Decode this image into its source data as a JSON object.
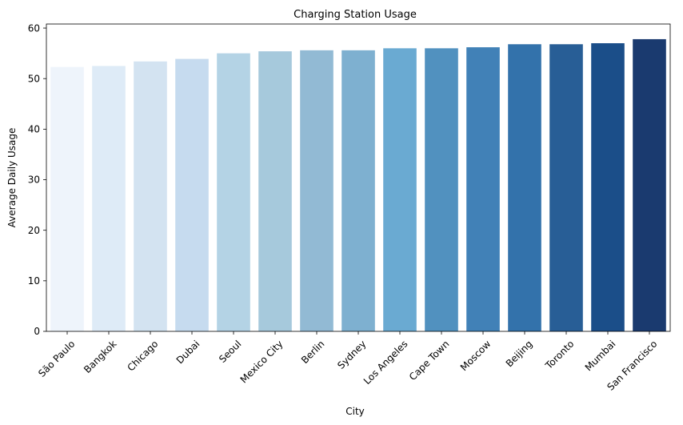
{
  "chart_data": {
    "type": "bar",
    "title": "Charging Station Usage",
    "xlabel": "City",
    "ylabel": "Average Daily Usage",
    "ylim": [
      0,
      60.8
    ],
    "yticks": [
      0,
      10,
      20,
      30,
      40,
      50,
      60
    ],
    "grid": false,
    "legend": "none",
    "categories": [
      "São Paulo",
      "Bangkok",
      "Chicago",
      "Dubai",
      "Seoul",
      "Mexico City",
      "Berlin",
      "Sydney",
      "Los Angeles",
      "Cape Town",
      "Moscow",
      "Beijing",
      "Toronto",
      "Mumbai",
      "San Francisco"
    ],
    "values": [
      52.3,
      52.5,
      53.4,
      53.9,
      55.0,
      55.4,
      55.6,
      55.6,
      56.0,
      56.0,
      56.2,
      56.8,
      56.8,
      57.0,
      57.8
    ],
    "colors": [
      "#eef4fb",
      "#deebf7",
      "#d3e3f1",
      "#c6dbef",
      "#b4d3e5",
      "#a6c9dc",
      "#92bad4",
      "#7eb0d0",
      "#6aaad2",
      "#5191bf",
      "#4181b7",
      "#3372ab",
      "#285e96",
      "#1b4e89",
      "#1a3a6f"
    ]
  }
}
